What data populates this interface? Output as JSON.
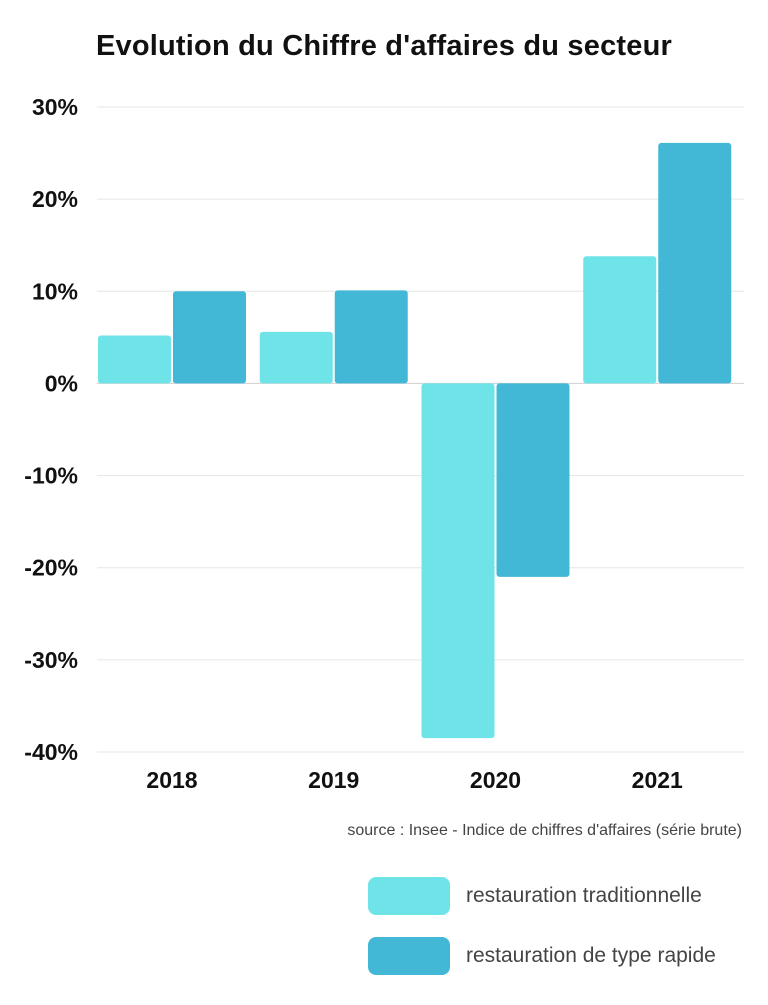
{
  "chart_data": {
    "type": "bar",
    "title": "Evolution du Chiffre d'affaires du secteur",
    "categories": [
      "2018",
      "2019",
      "2020",
      "2021"
    ],
    "series": [
      {
        "name": "restauration traditionnelle",
        "color": "#6ee3e8",
        "values": [
          5.2,
          5.6,
          -38.5,
          13.8
        ]
      },
      {
        "name": "restauration de type rapide",
        "color": "#42b8d6",
        "values": [
          10.0,
          10.1,
          -21.0,
          26.1
        ]
      }
    ],
    "yticks": [
      30,
      20,
      10,
      0,
      -10,
      -20,
      -30,
      -40
    ],
    "ytick_labels": [
      "30%",
      "20%",
      "10%",
      "0%",
      "-10%",
      "-20%",
      "-30%",
      "-40%"
    ],
    "ylim": [
      -40,
      30
    ],
    "xlabel": "",
    "ylabel": "",
    "grid": true,
    "legend_position": "bottom-right"
  },
  "source": "source : Insee - Indice de chiffres d'affaires (série brute)"
}
